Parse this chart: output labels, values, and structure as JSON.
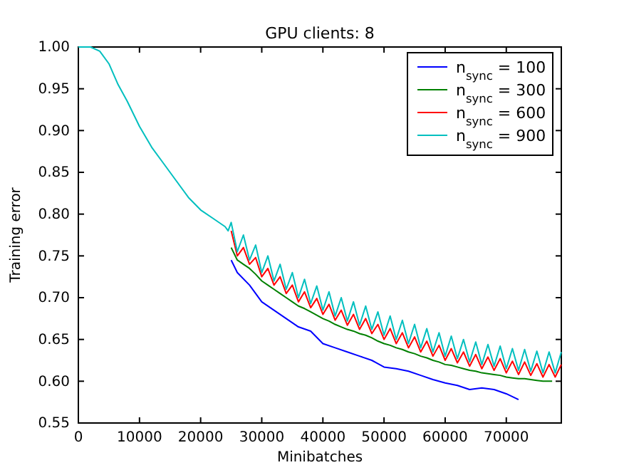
{
  "chart_data": {
    "type": "line",
    "title": "GPU clients: 8",
    "xlabel": "Minibatches",
    "ylabel": "Training error",
    "xlim": [
      0,
      79000
    ],
    "ylim": [
      0.55,
      1.0
    ],
    "xticks": [
      0,
      10000,
      20000,
      30000,
      40000,
      50000,
      60000,
      70000
    ],
    "yticks": [
      {
        "value": 0.55,
        "label": "0.55"
      },
      {
        "value": 0.6,
        "label": "0.60"
      },
      {
        "value": 0.65,
        "label": "0.65"
      },
      {
        "value": 0.7,
        "label": "0.70"
      },
      {
        "value": 0.75,
        "label": "0.75"
      },
      {
        "value": 0.8,
        "label": "0.80"
      },
      {
        "value": 0.85,
        "label": "0.85"
      },
      {
        "value": 0.9,
        "label": "0.90"
      },
      {
        "value": 0.95,
        "label": "0.95"
      },
      {
        "value": 1.0,
        "label": "1.00"
      }
    ],
    "legend": "top right",
    "grid": false,
    "marker": "none",
    "line_style": "solid",
    "series": [
      {
        "name": "n$_{sync}$ = 100",
        "color": "#0000ff",
        "x": [
          25000,
          26000,
          28000,
          30000,
          32000,
          34000,
          36000,
          38000,
          40000,
          42000,
          44000,
          46000,
          48000,
          50000,
          52000,
          54000,
          56000,
          58000,
          60000,
          62000,
          64000,
          66000,
          68000,
          70000,
          72000
        ],
        "values": [
          0.745,
          0.73,
          0.715,
          0.695,
          0.685,
          0.675,
          0.665,
          0.66,
          0.645,
          0.64,
          0.635,
          0.63,
          0.625,
          0.617,
          0.615,
          0.612,
          0.607,
          0.602,
          0.598,
          0.595,
          0.59,
          0.592,
          0.59,
          0.585,
          0.578
        ]
      },
      {
        "name": "n$_{sync}$ = 300",
        "color": "#008000",
        "x": [
          25000,
          26000,
          27000,
          28000,
          29000,
          30000,
          31000,
          32000,
          33000,
          34000,
          35000,
          36000,
          37000,
          38000,
          39000,
          40000,
          41000,
          42000,
          43000,
          44000,
          45000,
          46000,
          47000,
          48000,
          49000,
          50000,
          51000,
          52000,
          53000,
          54000,
          55000,
          56000,
          57000,
          58000,
          59000,
          60000,
          61000,
          62000,
          63000,
          64000,
          65000,
          66000,
          67000,
          68000,
          69000,
          70000,
          71000,
          72000,
          73000,
          74000,
          75000,
          76000,
          77000,
          77500
        ],
        "values": [
          0.76,
          0.745,
          0.74,
          0.735,
          0.728,
          0.72,
          0.715,
          0.71,
          0.705,
          0.7,
          0.695,
          0.69,
          0.687,
          0.683,
          0.679,
          0.675,
          0.672,
          0.668,
          0.665,
          0.662,
          0.66,
          0.657,
          0.655,
          0.652,
          0.648,
          0.645,
          0.643,
          0.64,
          0.638,
          0.635,
          0.633,
          0.63,
          0.628,
          0.625,
          0.623,
          0.62,
          0.619,
          0.617,
          0.615,
          0.613,
          0.612,
          0.61,
          0.609,
          0.608,
          0.607,
          0.605,
          0.604,
          0.603,
          0.603,
          0.602,
          0.601,
          0.6,
          0.6,
          0.6
        ]
      },
      {
        "name": "n$_{sync}$ = 600",
        "color": "#ff0000",
        "x": [
          25000,
          26000,
          27000,
          28000,
          29000,
          30000,
          31000,
          32000,
          33000,
          34000,
          35000,
          36000,
          37000,
          38000,
          39000,
          40000,
          41000,
          42000,
          43000,
          44000,
          45000,
          46000,
          47000,
          48000,
          49000,
          50000,
          51000,
          52000,
          53000,
          54000,
          55000,
          56000,
          57000,
          58000,
          59000,
          60000,
          61000,
          62000,
          63000,
          64000,
          65000,
          66000,
          67000,
          68000,
          69000,
          70000,
          71000,
          72000,
          73000,
          74000,
          75000,
          76000,
          77000,
          78000,
          79000
        ],
        "values": [
          0.78,
          0.75,
          0.76,
          0.74,
          0.748,
          0.725,
          0.735,
          0.715,
          0.725,
          0.705,
          0.715,
          0.695,
          0.707,
          0.688,
          0.699,
          0.68,
          0.692,
          0.673,
          0.685,
          0.667,
          0.68,
          0.662,
          0.675,
          0.657,
          0.668,
          0.65,
          0.663,
          0.645,
          0.658,
          0.64,
          0.653,
          0.635,
          0.648,
          0.63,
          0.643,
          0.625,
          0.639,
          0.622,
          0.635,
          0.618,
          0.632,
          0.615,
          0.629,
          0.613,
          0.627,
          0.61,
          0.624,
          0.608,
          0.623,
          0.607,
          0.621,
          0.605,
          0.62,
          0.605,
          0.62
        ]
      },
      {
        "name": "n$_{sync}$ = 900",
        "color": "#00bfbf",
        "x": [
          0,
          2000,
          3500,
          5000,
          6500,
          8000,
          10000,
          12000,
          14000,
          16000,
          18000,
          20000,
          22000,
          24000,
          24500,
          25000,
          26000,
          27000,
          28000,
          29000,
          30000,
          31000,
          32000,
          33000,
          34000,
          35000,
          36000,
          37000,
          38000,
          39000,
          40000,
          41000,
          42000,
          43000,
          44000,
          45000,
          46000,
          47000,
          48000,
          49000,
          50000,
          51000,
          52000,
          53000,
          54000,
          55000,
          56000,
          57000,
          58000,
          59000,
          60000,
          61000,
          62000,
          63000,
          64000,
          65000,
          66000,
          67000,
          68000,
          69000,
          70000,
          71000,
          72000,
          73000,
          74000,
          75000,
          76000,
          77000,
          78000,
          79000
        ],
        "values": [
          1.0,
          1.0,
          0.995,
          0.98,
          0.955,
          0.935,
          0.905,
          0.88,
          0.86,
          0.84,
          0.82,
          0.805,
          0.795,
          0.785,
          0.78,
          0.79,
          0.755,
          0.775,
          0.745,
          0.763,
          0.73,
          0.75,
          0.72,
          0.74,
          0.71,
          0.73,
          0.7,
          0.722,
          0.693,
          0.714,
          0.685,
          0.707,
          0.678,
          0.7,
          0.672,
          0.695,
          0.667,
          0.69,
          0.662,
          0.683,
          0.655,
          0.678,
          0.65,
          0.673,
          0.645,
          0.668,
          0.64,
          0.663,
          0.635,
          0.658,
          0.63,
          0.654,
          0.627,
          0.65,
          0.623,
          0.647,
          0.62,
          0.644,
          0.618,
          0.642,
          0.615,
          0.639,
          0.613,
          0.638,
          0.612,
          0.636,
          0.61,
          0.635,
          0.61,
          0.635
        ]
      }
    ]
  }
}
